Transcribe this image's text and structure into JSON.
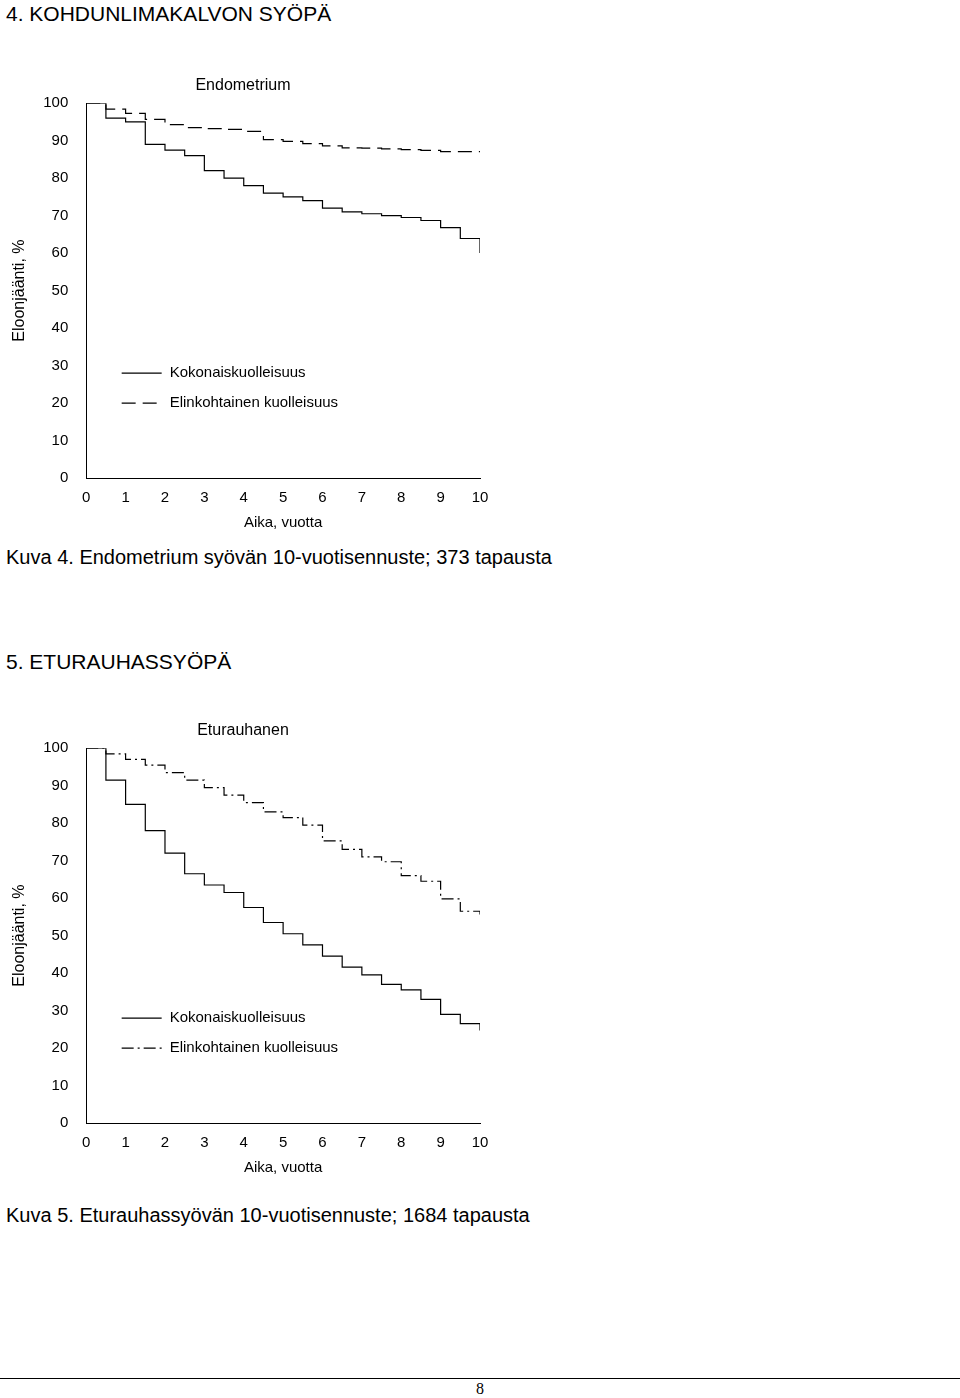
{
  "document": {
    "sections": [
      {
        "heading": "4. KOHDUNLIMAKALVON SYÖPÄ",
        "caption": "Kuva 4. Endometrium syövän 10-vuotisennuste; 373 tapausta"
      },
      {
        "heading": "5. ETURAUHASSYÖPÄ",
        "caption": "Kuva 5. Eturauhassyövän 10-vuotisennuste; 1684 tapausta"
      }
    ],
    "page_number": 8
  },
  "chart_data": [
    {
      "type": "line",
      "title": "Endometrium",
      "x_label": "Aika, vuotta",
      "y_label": "Eloonjäänti, %",
      "x": [
        0,
        0.5,
        1,
        1.5,
        2,
        2.5,
        3,
        3.5,
        4,
        4.5,
        5,
        5.5,
        6,
        6.5,
        7,
        7.5,
        8,
        8.5,
        9,
        9.5,
        10
      ],
      "series": [
        {
          "name": "Kokonaiskuolleisuus",
          "color": "#000000",
          "line_style": "solid",
          "values": [
            100,
            96,
            95,
            89,
            87.5,
            86,
            82,
            80,
            78,
            76,
            75,
            74,
            72,
            71,
            70.5,
            70,
            69.5,
            68.7,
            66.8,
            63.9,
            60
          ]
        },
        {
          "name": "Elinkohtainen kuolleisuus",
          "color": "#000000",
          "line_style": "dashed",
          "values": [
            100,
            98.4,
            97.3,
            95.7,
            94.3,
            93.5,
            93.2,
            93,
            92.5,
            90.3,
            89.8,
            89.2,
            88.6,
            88.1,
            88,
            87.8,
            87.6,
            87.4,
            87.1,
            87.1,
            87.1
          ]
        }
      ],
      "xlim": [
        0,
        10
      ],
      "xticks": [
        0,
        1,
        2,
        3,
        4,
        5,
        6,
        7,
        8,
        9,
        10
      ],
      "ylim": [
        0,
        100
      ],
      "yticks": [
        0,
        10,
        20,
        30,
        40,
        50,
        60,
        70,
        80,
        90,
        100
      ],
      "grid": false,
      "legend": "lower left"
    },
    {
      "type": "line",
      "title": "Eturauhanen",
      "x_label": "Aika, vuotta",
      "y_label": "Eloonjäänti, %",
      "x": [
        0,
        0.5,
        1,
        1.5,
        2,
        2.5,
        3,
        3.5,
        4,
        4.5,
        5,
        5.5,
        6,
        6.5,
        7,
        7.5,
        8,
        8.5,
        9,
        9.5,
        10
      ],
      "series": [
        {
          "name": "Kokonaiskuolleisuus",
          "color": "#000000",
          "line_style": "solid",
          "values": [
            100,
            91.5,
            85,
            78,
            72,
            66.5,
            63.5,
            61.5,
            57.5,
            53.5,
            50.5,
            47.5,
            44.5,
            41.6,
            39.5,
            37,
            35.5,
            33,
            29,
            26.5,
            24.7
          ]
        },
        {
          "name": "Elinkohtainen kuolleisuus",
          "color": "#000000",
          "line_style": "dashdot",
          "values": [
            100,
            98.5,
            97,
            95.5,
            93.5,
            91.5,
            89.5,
            87.5,
            85.5,
            83,
            81.5,
            79.5,
            75.3,
            73,
            71,
            69.7,
            66,
            64.5,
            59.8,
            56.5,
            55.6
          ]
        }
      ],
      "xlim": [
        0,
        10
      ],
      "xticks": [
        0,
        1,
        2,
        3,
        4,
        5,
        6,
        7,
        8,
        9,
        10
      ],
      "ylim": [
        0,
        100
      ],
      "yticks": [
        0,
        10,
        20,
        30,
        40,
        50,
        60,
        70,
        80,
        90,
        100
      ],
      "grid": false,
      "legend": "lower left"
    }
  ]
}
